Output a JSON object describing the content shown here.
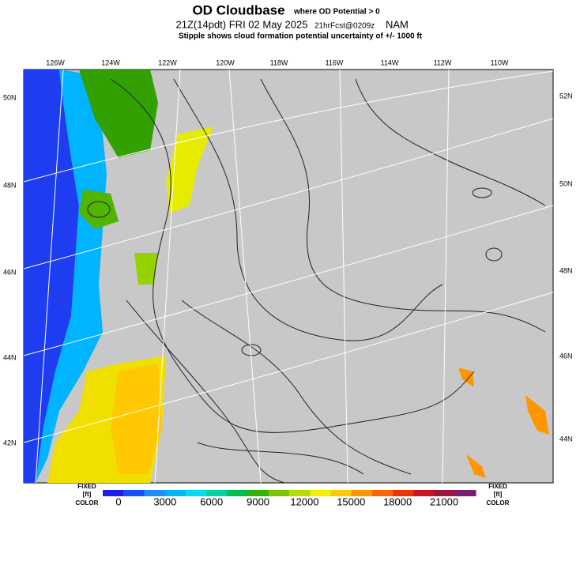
{
  "header": {
    "title": "OD Cloudbase",
    "title_note": "where OD Potential > 0",
    "valid_time": "21Z(14pdt) FRI 02 May 2025",
    "forecast": "21hrFcst@0209z",
    "model": "NAM",
    "subtitle": "Stipple shows cloud formation potential uncertainty of +/-  1000 ft"
  },
  "map": {
    "top_longitudes": [
      "126W",
      "124W",
      "122W",
      "120W",
      "118W",
      "116W",
      "114W",
      "112W",
      "110W"
    ],
    "left_latitudes": [
      "50N",
      "48N",
      "46N",
      "44N",
      "42N"
    ],
    "right_latitudes": [
      "52N",
      "50N",
      "48N",
      "46N",
      "44N"
    ]
  },
  "colorbar": {
    "left_labels": [
      "FIXED",
      "[ft]",
      "COLOR"
    ],
    "right_labels": [
      "FIXED",
      "[ft]",
      "COLOR"
    ],
    "ticks": [
      0,
      3000,
      6000,
      9000,
      12000,
      15000,
      18000,
      21000
    ],
    "colors": [
      "#1e1ef0",
      "#1450ff",
      "#1e8cff",
      "#00b4ff",
      "#00dcf0",
      "#00d2a0",
      "#00be50",
      "#32b400",
      "#78c800",
      "#b4dc00",
      "#f0f000",
      "#ffc800",
      "#ff9600",
      "#ff6400",
      "#f03200",
      "#c8141e",
      "#a0143c",
      "#781e78"
    ]
  }
}
